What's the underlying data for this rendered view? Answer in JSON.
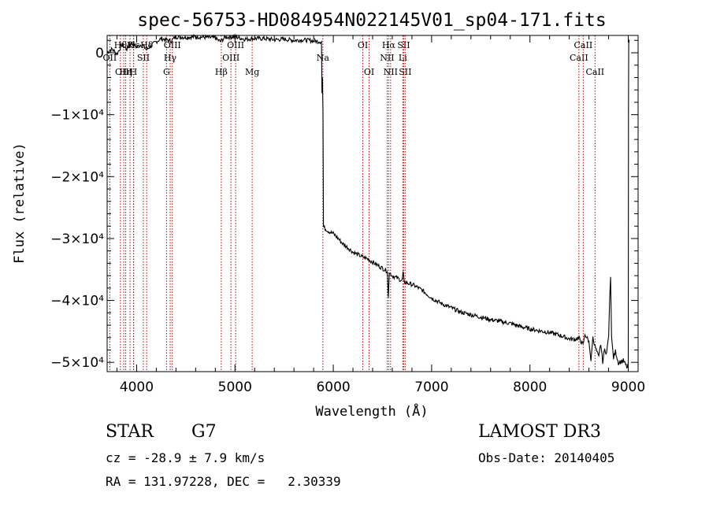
{
  "chart_data": {
    "type": "line",
    "title": "spec-56753-HD084954N022145V01_sp04-171.fits",
    "xlabel": "Wavelength (Å)",
    "ylabel": "Flux (relative)",
    "xlim": [
      3700,
      9100
    ],
    "ylim": [
      -51500,
      2800
    ],
    "xticks": [
      {
        "value": 4000,
        "label": "4000"
      },
      {
        "value": 5000,
        "label": "5000"
      },
      {
        "value": 6000,
        "label": "6000"
      },
      {
        "value": 7000,
        "label": "7000"
      },
      {
        "value": 8000,
        "label": "8000"
      },
      {
        "value": 9000,
        "label": "9000"
      }
    ],
    "yticks": [
      {
        "value": 0,
        "label": "0"
      },
      {
        "value": -10000,
        "label": "−1×10⁴"
      },
      {
        "value": -20000,
        "label": "−2×10⁴"
      },
      {
        "value": -30000,
        "label": "−3×10⁴"
      },
      {
        "value": -40000,
        "label": "−4×10⁴"
      },
      {
        "value": -50000,
        "label": "−5×10⁴"
      }
    ],
    "grid": false,
    "series": [
      {
        "name": "spectrum",
        "points": [
          [
            3700,
            100
          ],
          [
            3750,
            600
          ],
          [
            3800,
            -200
          ],
          [
            3850,
            1300
          ],
          [
            3900,
            600
          ],
          [
            3950,
            1600
          ],
          [
            4000,
            900
          ],
          [
            4050,
            1400
          ],
          [
            4100,
            500
          ],
          [
            4150,
            1200
          ],
          [
            4200,
            1800
          ],
          [
            4250,
            2300
          ],
          [
            4300,
            2100
          ],
          [
            4350,
            1900
          ],
          [
            4400,
            2600
          ],
          [
            4500,
            2500
          ],
          [
            4600,
            2600
          ],
          [
            4700,
            2500
          ],
          [
            4800,
            2400
          ],
          [
            4850,
            1800
          ],
          [
            4900,
            2500
          ],
          [
            5000,
            2600
          ],
          [
            5100,
            2200
          ],
          [
            5200,
            2300
          ],
          [
            5300,
            2300
          ],
          [
            5400,
            2100
          ],
          [
            5500,
            2200
          ],
          [
            5600,
            2000
          ],
          [
            5700,
            2100
          ],
          [
            5800,
            1900
          ],
          [
            5880,
            1800
          ],
          [
            5885,
            -6500
          ],
          [
            5890,
            -4000
          ],
          [
            5895,
            -9500
          ],
          [
            5900,
            -28000
          ],
          [
            5910,
            -28300
          ],
          [
            5950,
            -28800
          ],
          [
            6000,
            -29200
          ],
          [
            6050,
            -30000
          ],
          [
            6100,
            -30900
          ],
          [
            6150,
            -31500
          ],
          [
            6200,
            -32200
          ],
          [
            6250,
            -32600
          ],
          [
            6300,
            -33000
          ],
          [
            6350,
            -33300
          ],
          [
            6400,
            -33800
          ],
          [
            6450,
            -34300
          ],
          [
            6500,
            -34800
          ],
          [
            6550,
            -35300
          ],
          [
            6560,
            -39500
          ],
          [
            6570,
            -35500
          ],
          [
            6600,
            -36000
          ],
          [
            6650,
            -36400
          ],
          [
            6700,
            -36800
          ],
          [
            6710,
            -35500
          ],
          [
            6720,
            -37000
          ],
          [
            6750,
            -37200
          ],
          [
            6800,
            -37400
          ],
          [
            6900,
            -38300
          ],
          [
            7000,
            -39600
          ],
          [
            7100,
            -40500
          ],
          [
            7200,
            -41200
          ],
          [
            7300,
            -41900
          ],
          [
            7400,
            -42300
          ],
          [
            7500,
            -42700
          ],
          [
            7600,
            -43100
          ],
          [
            7700,
            -43400
          ],
          [
            7800,
            -43700
          ],
          [
            7900,
            -44200
          ],
          [
            8000,
            -44600
          ],
          [
            8100,
            -44900
          ],
          [
            8200,
            -45200
          ],
          [
            8300,
            -45600
          ],
          [
            8400,
            -46200
          ],
          [
            8450,
            -46300
          ],
          [
            8500,
            -46100
          ],
          [
            8540,
            -47200
          ],
          [
            8560,
            -45500
          ],
          [
            8600,
            -46600
          ],
          [
            8620,
            -49800
          ],
          [
            8640,
            -46000
          ],
          [
            8662,
            -47400
          ],
          [
            8680,
            -48300
          ],
          [
            8700,
            -49200
          ],
          [
            8720,
            -47000
          ],
          [
            8740,
            -49900
          ],
          [
            8760,
            -47900
          ],
          [
            8780,
            -48500
          ],
          [
            8800,
            -45800
          ],
          [
            8810,
            -40200
          ],
          [
            8820,
            -36200
          ],
          [
            8830,
            -45800
          ],
          [
            8850,
            -49300
          ],
          [
            8870,
            -48200
          ],
          [
            8900,
            -50100
          ],
          [
            8950,
            -49700
          ],
          [
            8990,
            -50900
          ],
          [
            9000,
            -50500
          ],
          [
            9002,
            -9000
          ],
          [
            9005,
            1500
          ],
          [
            9010,
            2100
          ]
        ]
      }
    ],
    "line_markers": [
      {
        "wavelength": 3835,
        "label": "Hθ",
        "row": 0
      },
      {
        "wavelength": 3889,
        "label": "Hη",
        "row": 2
      },
      {
        "wavelength": 3933,
        "label": "K",
        "row": 0
      },
      {
        "wavelength": 3968,
        "label": "H",
        "row": 2
      },
      {
        "wavelength": 3970,
        "label": "Hε",
        "row": 0
      },
      {
        "wavelength": 4102,
        "label": "Hδ",
        "row": 0
      },
      {
        "wavelength": 4068,
        "label": "SII",
        "row": 1
      },
      {
        "wavelength": 3727,
        "label": "OII",
        "row": 1
      },
      {
        "wavelength": 3869,
        "label": "OIII",
        "row": 2
      },
      {
        "wavelength": 4304,
        "label": "G",
        "row": 2
      },
      {
        "wavelength": 4341,
        "label": "Hγ",
        "row": 1
      },
      {
        "wavelength": 4363,
        "label": "OIII",
        "row": 0
      },
      {
        "wavelength": 4861,
        "label": "Hβ",
        "row": 2
      },
      {
        "wavelength": 4959,
        "label": "OIII",
        "row": 1
      },
      {
        "wavelength": 5007,
        "label": "OIII",
        "row": 0
      },
      {
        "wavelength": 5175,
        "label": "Mg",
        "row": 2
      },
      {
        "wavelength": 5894,
        "label": "Na",
        "row": 1
      },
      {
        "wavelength": 6300,
        "label": "OI",
        "row": 0
      },
      {
        "wavelength": 6364,
        "label": "OI",
        "row": 2
      },
      {
        "wavelength": 6548,
        "label": "NII",
        "row": 1
      },
      {
        "wavelength": 6563,
        "label": "Hα",
        "row": 0
      },
      {
        "wavelength": 6583,
        "label": "NII",
        "row": 2
      },
      {
        "wavelength": 6707,
        "label": "Li",
        "row": 1
      },
      {
        "wavelength": 6716,
        "label": "SII",
        "row": 0
      },
      {
        "wavelength": 6731,
        "label": "SII",
        "row": 2
      },
      {
        "wavelength": 8498,
        "label": "CaII",
        "row": 1
      },
      {
        "wavelength": 8542,
        "label": "CaII",
        "row": 0
      },
      {
        "wavelength": 8662,
        "label": "CaII",
        "row": 2
      }
    ],
    "line_marker_color": "#c00000",
    "line_color": "#000000"
  },
  "footer": {
    "object_class": "STAR",
    "subclass": "G7",
    "cz": "cz = -28.9 ± 7.9 km/s",
    "coords": "RA = 131.97228, DEC =   2.30339",
    "survey": "LAMOST DR3",
    "obs_date": "Obs-Date: 20140405"
  }
}
